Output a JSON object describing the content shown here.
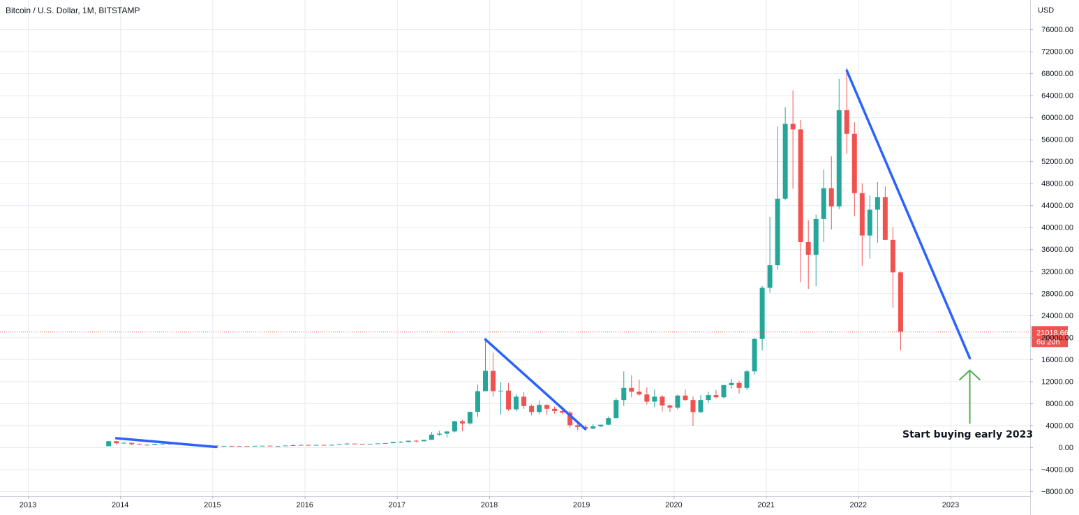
{
  "header": {
    "title": "Bitcoin / U.S. Dollar, 1M, BITSTAMP"
  },
  "chart_data": {
    "type": "candlestick",
    "title": "Bitcoin / U.S. Dollar, 1M, BITSTAMP",
    "currency": "USD",
    "ylim": [
      -8000,
      78000
    ],
    "y_ticks": [
      -8000,
      -4000,
      0,
      4000,
      8000,
      12000,
      16000,
      20000,
      24000,
      28000,
      32000,
      36000,
      40000,
      44000,
      48000,
      52000,
      56000,
      60000,
      64000,
      68000,
      72000,
      76000
    ],
    "y_tick_labels": [
      "−8000.00",
      "−4000.00",
      "0.00",
      "4000.00",
      "8000.00",
      "12000.00",
      "16000.00",
      "20000.00",
      "24000.00",
      "28000.00",
      "32000.00",
      "36000.00",
      "40000.00",
      "44000.00",
      "48000.00",
      "52000.00",
      "56000.00",
      "60000.00",
      "64000.00",
      "68000.00",
      "72000.00",
      "76000.00"
    ],
    "x_tick_labels": [
      "2013",
      "2014",
      "2015",
      "2016",
      "2017",
      "2018",
      "2019",
      "2020",
      "2021",
      "2022",
      "2023"
    ],
    "x_tick_years": [
      2013,
      2014,
      2015,
      2016,
      2017,
      2018,
      2019,
      2020,
      2021,
      2022,
      2023
    ],
    "last_price": {
      "value": 21018.66,
      "label": "21018.66",
      "countdown": "6d 20h"
    },
    "colors": {
      "up": "#26a69a",
      "down": "#ef5350",
      "trendline": "#2962ff",
      "arrow": "#4caf50",
      "grid": "#e7eaf0"
    },
    "candles": [
      {
        "t": "2013-11",
        "o": 200,
        "h": 1150,
        "l": 180,
        "c": 1100
      },
      {
        "t": "2013-12",
        "o": 1100,
        "h": 1160,
        "l": 500,
        "c": 730
      },
      {
        "t": "2014-01",
        "o": 730,
        "h": 1000,
        "l": 740,
        "c": 810
      },
      {
        "t": "2014-02",
        "o": 810,
        "h": 750,
        "l": 400,
        "c": 560
      },
      {
        "t": "2014-03",
        "o": 560,
        "h": 710,
        "l": 450,
        "c": 450
      },
      {
        "t": "2014-04",
        "o": 450,
        "h": 530,
        "l": 340,
        "c": 450
      },
      {
        "t": "2014-05",
        "o": 450,
        "h": 620,
        "l": 440,
        "c": 630
      },
      {
        "t": "2014-06",
        "o": 630,
        "h": 680,
        "l": 540,
        "c": 640
      },
      {
        "t": "2014-07",
        "o": 640,
        "h": 640,
        "l": 570,
        "c": 580
      },
      {
        "t": "2014-08",
        "o": 580,
        "h": 600,
        "l": 450,
        "c": 480
      },
      {
        "t": "2014-09",
        "o": 480,
        "h": 500,
        "l": 370,
        "c": 380
      },
      {
        "t": "2014-10",
        "o": 380,
        "h": 420,
        "l": 290,
        "c": 340
      },
      {
        "t": "2014-11",
        "o": 340,
        "h": 460,
        "l": 320,
        "c": 380
      },
      {
        "t": "2014-12",
        "o": 380,
        "h": 400,
        "l": 300,
        "c": 320
      },
      {
        "t": "2015-01",
        "o": 320,
        "h": 320,
        "l": 150,
        "c": 220
      },
      {
        "t": "2015-02",
        "o": 220,
        "h": 280,
        "l": 200,
        "c": 255
      },
      {
        "t": "2015-03",
        "o": 255,
        "h": 300,
        "l": 240,
        "c": 245
      },
      {
        "t": "2015-04",
        "o": 245,
        "h": 260,
        "l": 215,
        "c": 235
      },
      {
        "t": "2015-05",
        "o": 235,
        "h": 245,
        "l": 225,
        "c": 230
      },
      {
        "t": "2015-06",
        "o": 230,
        "h": 270,
        "l": 220,
        "c": 265
      },
      {
        "t": "2015-07",
        "o": 265,
        "h": 300,
        "l": 260,
        "c": 285
      },
      {
        "t": "2015-08",
        "o": 285,
        "h": 285,
        "l": 200,
        "c": 230
      },
      {
        "t": "2015-09",
        "o": 230,
        "h": 245,
        "l": 225,
        "c": 236
      },
      {
        "t": "2015-10",
        "o": 236,
        "h": 330,
        "l": 235,
        "c": 315
      },
      {
        "t": "2015-11",
        "o": 315,
        "h": 500,
        "l": 300,
        "c": 378
      },
      {
        "t": "2015-12",
        "o": 378,
        "h": 470,
        "l": 340,
        "c": 430
      },
      {
        "t": "2016-01",
        "o": 430,
        "h": 460,
        "l": 350,
        "c": 368
      },
      {
        "t": "2016-02",
        "o": 368,
        "h": 440,
        "l": 365,
        "c": 437
      },
      {
        "t": "2016-03",
        "o": 437,
        "h": 440,
        "l": 400,
        "c": 416
      },
      {
        "t": "2016-04",
        "o": 416,
        "h": 470,
        "l": 410,
        "c": 448
      },
      {
        "t": "2016-05",
        "o": 448,
        "h": 550,
        "l": 440,
        "c": 531
      },
      {
        "t": "2016-06",
        "o": 531,
        "h": 780,
        "l": 525,
        "c": 671
      },
      {
        "t": "2016-07",
        "o": 671,
        "h": 700,
        "l": 600,
        "c": 624
      },
      {
        "t": "2016-08",
        "o": 624,
        "h": 630,
        "l": 470,
        "c": 573
      },
      {
        "t": "2016-09",
        "o": 573,
        "h": 620,
        "l": 570,
        "c": 608
      },
      {
        "t": "2016-10",
        "o": 608,
        "h": 720,
        "l": 605,
        "c": 700
      },
      {
        "t": "2016-11",
        "o": 700,
        "h": 760,
        "l": 690,
        "c": 742
      },
      {
        "t": "2016-12",
        "o": 742,
        "h": 980,
        "l": 740,
        "c": 963
      },
      {
        "t": "2017-01",
        "o": 963,
        "h": 1150,
        "l": 750,
        "c": 970
      },
      {
        "t": "2017-02",
        "o": 970,
        "h": 1200,
        "l": 920,
        "c": 1190
      },
      {
        "t": "2017-03",
        "o": 1190,
        "h": 1290,
        "l": 890,
        "c": 1080
      },
      {
        "t": "2017-04",
        "o": 1080,
        "h": 1380,
        "l": 1080,
        "c": 1350
      },
      {
        "t": "2017-05",
        "o": 1350,
        "h": 2760,
        "l": 1350,
        "c": 2300
      },
      {
        "t": "2017-06",
        "o": 2300,
        "h": 3000,
        "l": 2100,
        "c": 2480
      },
      {
        "t": "2017-07",
        "o": 2480,
        "h": 2950,
        "l": 1800,
        "c": 2870
      },
      {
        "t": "2017-08",
        "o": 2870,
        "h": 4800,
        "l": 2700,
        "c": 4730
      },
      {
        "t": "2017-09",
        "o": 4730,
        "h": 5000,
        "l": 2900,
        "c": 4340
      },
      {
        "t": "2017-10",
        "o": 4340,
        "h": 6450,
        "l": 4100,
        "c": 6440
      },
      {
        "t": "2017-11",
        "o": 6440,
        "h": 11400,
        "l": 5500,
        "c": 10200
      },
      {
        "t": "2017-12",
        "o": 10200,
        "h": 19700,
        "l": 10200,
        "c": 13900
      },
      {
        "t": "2018-01",
        "o": 13900,
        "h": 17200,
        "l": 9200,
        "c": 10200
      },
      {
        "t": "2018-02",
        "o": 10200,
        "h": 11800,
        "l": 5900,
        "c": 10300
      },
      {
        "t": "2018-03",
        "o": 10300,
        "h": 11700,
        "l": 6600,
        "c": 6900
      },
      {
        "t": "2018-04",
        "o": 6900,
        "h": 9700,
        "l": 6500,
        "c": 9200
      },
      {
        "t": "2018-05",
        "o": 9200,
        "h": 10000,
        "l": 7000,
        "c": 7500
      },
      {
        "t": "2018-06",
        "o": 7500,
        "h": 7800,
        "l": 5800,
        "c": 6400
      },
      {
        "t": "2018-07",
        "o": 6400,
        "h": 8500,
        "l": 6000,
        "c": 7700
      },
      {
        "t": "2018-08",
        "o": 7700,
        "h": 7800,
        "l": 5900,
        "c": 7000
      },
      {
        "t": "2018-09",
        "o": 7000,
        "h": 7400,
        "l": 6100,
        "c": 6600
      },
      {
        "t": "2018-10",
        "o": 6600,
        "h": 7400,
        "l": 6000,
        "c": 6300
      },
      {
        "t": "2018-11",
        "o": 6300,
        "h": 6600,
        "l": 3500,
        "c": 4000
      },
      {
        "t": "2018-12",
        "o": 4000,
        "h": 4300,
        "l": 3100,
        "c": 3700
      },
      {
        "t": "2019-01",
        "o": 3700,
        "h": 4100,
        "l": 3400,
        "c": 3400
      },
      {
        "t": "2019-02",
        "o": 3400,
        "h": 4200,
        "l": 3300,
        "c": 3800
      },
      {
        "t": "2019-03",
        "o": 3800,
        "h": 4100,
        "l": 3700,
        "c": 4100
      },
      {
        "t": "2019-04",
        "o": 4100,
        "h": 5600,
        "l": 4000,
        "c": 5300
      },
      {
        "t": "2019-05",
        "o": 5300,
        "h": 9000,
        "l": 5300,
        "c": 8600
      },
      {
        "t": "2019-06",
        "o": 8600,
        "h": 13800,
        "l": 7500,
        "c": 10800
      },
      {
        "t": "2019-07",
        "o": 10800,
        "h": 13100,
        "l": 9100,
        "c": 10100
      },
      {
        "t": "2019-08",
        "o": 10100,
        "h": 12300,
        "l": 9400,
        "c": 9600
      },
      {
        "t": "2019-09",
        "o": 9600,
        "h": 10900,
        "l": 7800,
        "c": 8300
      },
      {
        "t": "2019-10",
        "o": 8300,
        "h": 10500,
        "l": 7300,
        "c": 9200
      },
      {
        "t": "2019-11",
        "o": 9200,
        "h": 9500,
        "l": 6500,
        "c": 7600
      },
      {
        "t": "2019-12",
        "o": 7600,
        "h": 7700,
        "l": 6400,
        "c": 7200
      },
      {
        "t": "2020-01",
        "o": 7200,
        "h": 9600,
        "l": 6900,
        "c": 9400
      },
      {
        "t": "2020-02",
        "o": 9400,
        "h": 10500,
        "l": 8400,
        "c": 8600
      },
      {
        "t": "2020-03",
        "o": 8600,
        "h": 9200,
        "l": 3900,
        "c": 6400
      },
      {
        "t": "2020-04",
        "o": 6400,
        "h": 9500,
        "l": 6200,
        "c": 8600
      },
      {
        "t": "2020-05",
        "o": 8600,
        "h": 10100,
        "l": 8100,
        "c": 9500
      },
      {
        "t": "2020-06",
        "o": 9500,
        "h": 10400,
        "l": 8900,
        "c": 9100
      },
      {
        "t": "2020-07",
        "o": 9100,
        "h": 11400,
        "l": 8900,
        "c": 11300
      },
      {
        "t": "2020-08",
        "o": 11300,
        "h": 12500,
        "l": 10600,
        "c": 11700
      },
      {
        "t": "2020-09",
        "o": 11700,
        "h": 12100,
        "l": 9800,
        "c": 10800
      },
      {
        "t": "2020-10",
        "o": 10800,
        "h": 14100,
        "l": 10400,
        "c": 13800
      },
      {
        "t": "2020-11",
        "o": 13800,
        "h": 19900,
        "l": 13200,
        "c": 19700
      },
      {
        "t": "2020-12",
        "o": 19700,
        "h": 29300,
        "l": 17600,
        "c": 29000
      },
      {
        "t": "2021-01",
        "o": 29000,
        "h": 41900,
        "l": 28100,
        "c": 33100
      },
      {
        "t": "2021-02",
        "o": 33100,
        "h": 58300,
        "l": 32300,
        "c": 45200
      },
      {
        "t": "2021-03",
        "o": 45200,
        "h": 61800,
        "l": 44900,
        "c": 58800
      },
      {
        "t": "2021-04",
        "o": 58800,
        "h": 64900,
        "l": 47000,
        "c": 57800
      },
      {
        "t": "2021-05",
        "o": 57800,
        "h": 59500,
        "l": 30000,
        "c": 37300
      },
      {
        "t": "2021-06",
        "o": 37300,
        "h": 41300,
        "l": 28800,
        "c": 35000
      },
      {
        "t": "2021-07",
        "o": 35000,
        "h": 42300,
        "l": 29300,
        "c": 41500
      },
      {
        "t": "2021-08",
        "o": 41500,
        "h": 50500,
        "l": 37300,
        "c": 47100
      },
      {
        "t": "2021-09",
        "o": 47100,
        "h": 52900,
        "l": 39600,
        "c": 43800
      },
      {
        "t": "2021-10",
        "o": 43800,
        "h": 67000,
        "l": 43300,
        "c": 61300
      },
      {
        "t": "2021-11",
        "o": 61300,
        "h": 69000,
        "l": 53300,
        "c": 57000
      },
      {
        "t": "2021-12",
        "o": 57000,
        "h": 59100,
        "l": 42000,
        "c": 46200
      },
      {
        "t": "2022-01",
        "o": 46200,
        "h": 48000,
        "l": 33000,
        "c": 38500
      },
      {
        "t": "2022-02",
        "o": 38500,
        "h": 45800,
        "l": 34300,
        "c": 43200
      },
      {
        "t": "2022-03",
        "o": 43200,
        "h": 48200,
        "l": 37200,
        "c": 45500
      },
      {
        "t": "2022-04",
        "o": 45500,
        "h": 47400,
        "l": 37700,
        "c": 37700
      },
      {
        "t": "2022-05",
        "o": 37700,
        "h": 40000,
        "l": 25400,
        "c": 31800
      },
      {
        "t": "2022-06",
        "o": 31800,
        "h": 32000,
        "l": 17600,
        "c": 21018.66
      }
    ],
    "trendlines": [
      {
        "x1": "2013-12",
        "y1": 1650,
        "x2": "2015-01",
        "y2": 60
      },
      {
        "x1": "2017-12",
        "y1": 19600,
        "x2": "2019-01",
        "y2": 3300
      },
      {
        "x1": "2021-11",
        "y1": 68500,
        "x2": "2023-03",
        "y2": 16200
      }
    ],
    "annotations": [
      {
        "text": "Start buying early 2023",
        "x": "2023-03",
        "y": 1800
      }
    ],
    "arrow": {
      "x": "2023-03",
      "y_from": 4300,
      "y_to": 14000
    }
  }
}
